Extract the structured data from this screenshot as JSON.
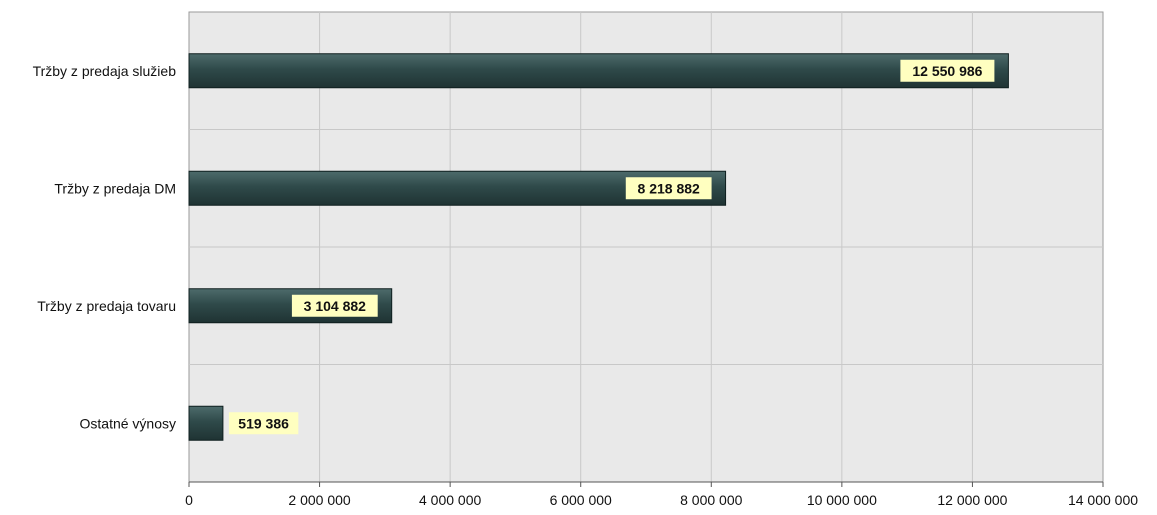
{
  "colors": {
    "plot_background": "#e9e9e9",
    "gridline": "#c8c8c8",
    "bar_fill": "#2f4a4a",
    "bar_highlight": "#4d6b6b",
    "label_background": "#ffffc0",
    "text": "#111111"
  },
  "chart_data": {
    "type": "bar",
    "orientation": "horizontal",
    "categories": [
      "Tržby z predaja služieb",
      "Tržby z predaja DM",
      "Tržby z predaja tovaru",
      "Ostatné výnosy"
    ],
    "values": [
      12550986,
      8218882,
      3104882,
      519386
    ],
    "data_labels": [
      "12 550 986",
      "8 218 882",
      "3 104 882",
      "519 386"
    ],
    "xlim": [
      0,
      14000000
    ],
    "xticks": [
      0,
      2000000,
      4000000,
      6000000,
      8000000,
      10000000,
      12000000,
      14000000
    ],
    "xtick_labels": [
      "0",
      "2 000 000",
      "4 000 000",
      "6 000 000",
      "8 000 000",
      "10 000 000",
      "12 000 000",
      "14 000 000"
    ],
    "grid": true,
    "legend": "none",
    "title": "",
    "xlabel": "",
    "ylabel": ""
  }
}
